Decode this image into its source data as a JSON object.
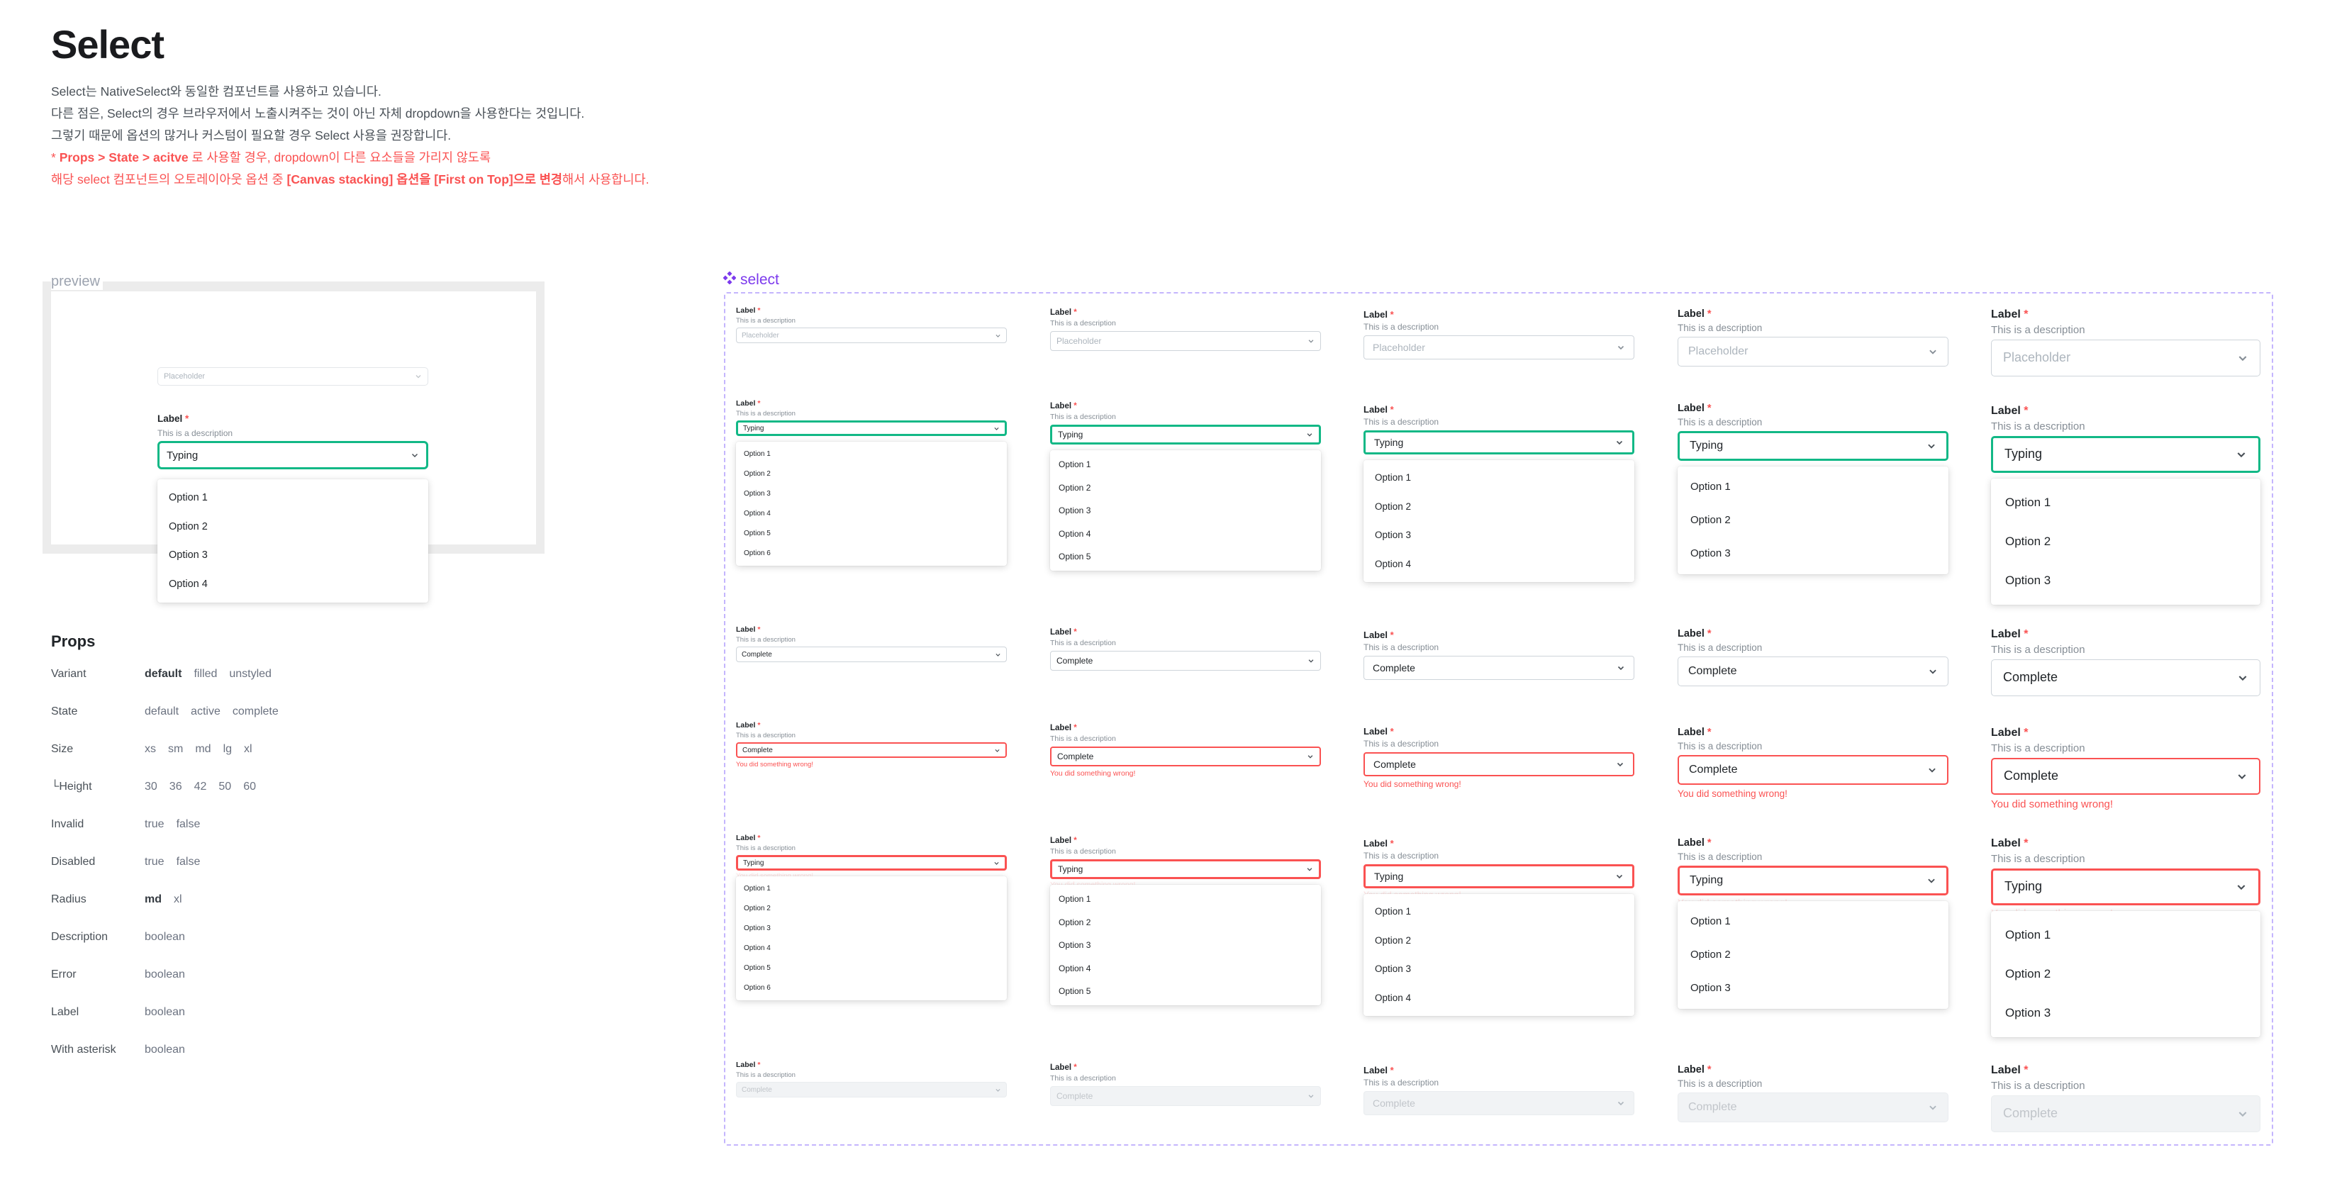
{
  "page": {
    "title": "Select",
    "desc_lines": [
      "Select는 NativeSelect와 동일한 컴포넌트를 사용하고 있습니다.",
      "다른 점은, Select의 경우 브라우저에서 노출시켜주는 것이 아닌 자체 dropdown을 사용한다는 것입니다.",
      "그렇기 때문에 옵션의 많거나 커스텀이 필요할 경우 Select 사용을 권장합니다."
    ],
    "warn1": {
      "prefix": "* ",
      "bold": "Props > State > acitve",
      "rest": " 로 사용할 경우, dropdown이 다른 요소들을 가리지 않도록"
    },
    "warn2": {
      "pre": "해당 select 컴포넌트의 오토레이아웃 옵션 중 ",
      "bold": "[Canvas stacking] 옵션을 [First on Top]으로 변경",
      "post": "해서 사용합니다."
    }
  },
  "preview": {
    "label": "preview",
    "placeholder": "Placeholder",
    "field_label": "Label",
    "asterisk": "*",
    "description": "This is a description",
    "value": "Typing",
    "options": [
      "Option 1",
      "Option 2",
      "Option 3",
      "Option 4"
    ]
  },
  "props": {
    "title": "Props",
    "rows": [
      {
        "name": "Variant",
        "values": [
          "default",
          "filled",
          "unstyled"
        ],
        "selected": "default"
      },
      {
        "name": "State",
        "values": [
          "default",
          "active",
          "complete"
        ],
        "selected": ""
      },
      {
        "name": "Size",
        "values": [
          "xs",
          "sm",
          "md",
          "lg",
          "xl"
        ],
        "selected": ""
      },
      {
        "name": "└Height",
        "values": [
          "30",
          "36",
          "42",
          "50",
          "60"
        ],
        "selected": ""
      },
      {
        "name": "Invalid",
        "values": [
          "true",
          "false"
        ],
        "selected": ""
      },
      {
        "name": "Disabled",
        "values": [
          "true",
          "false"
        ],
        "selected": ""
      },
      {
        "name": "Radius",
        "values": [
          "md",
          "xl"
        ],
        "selected": "md"
      },
      {
        "name": "Description",
        "values": [
          "boolean"
        ],
        "selected": ""
      },
      {
        "name": "Error",
        "values": [
          "boolean"
        ],
        "selected": ""
      },
      {
        "name": "Label",
        "values": [
          "boolean"
        ],
        "selected": ""
      },
      {
        "name": "With asterisk",
        "values": [
          "boolean"
        ],
        "selected": ""
      }
    ]
  },
  "component": {
    "icon": "component-diamond-icon",
    "label": "select",
    "field_label": "Label",
    "asterisk": "*",
    "description": "This is a description",
    "placeholder": "Placeholder",
    "typing": "Typing",
    "complete": "Complete",
    "error_text": "You did something wrong!",
    "sizes": [
      "xs",
      "sm",
      "md",
      "lg",
      "xl"
    ],
    "option_counts": [
      6,
      5,
      4,
      3,
      3
    ],
    "options": [
      "Option 1",
      "Option 2",
      "Option 3",
      "Option 4",
      "Option 5",
      "Option 6"
    ]
  },
  "colors": {
    "active": "#12b886",
    "error": "#fa5252",
    "purple": "#7c3aed",
    "frame_dash": "#c4b5fd"
  }
}
